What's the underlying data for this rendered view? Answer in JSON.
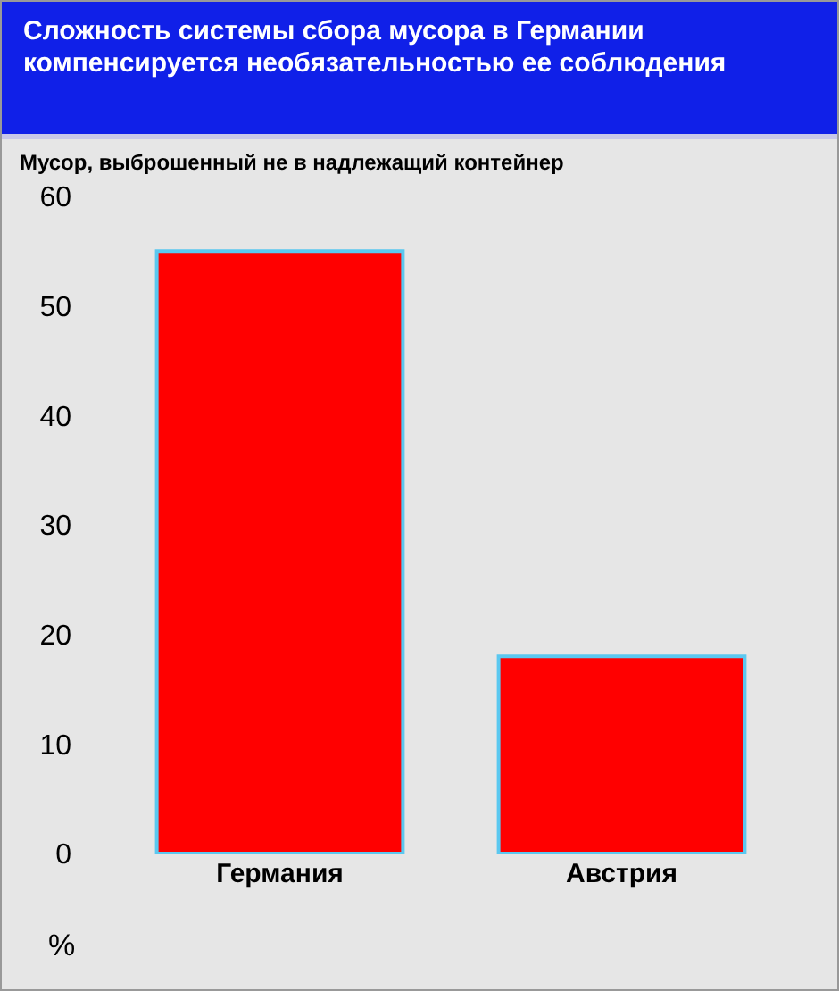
{
  "chart_data": {
    "type": "bar",
    "title": "Сложность системы сбора мусора в Германии компенсируется необязательностью ее соблюдения",
    "subtitle": "Мусор, выброшенный не в надлежащий контейнер",
    "ylabel": "%",
    "categories": [
      "Германия",
      "Австрия"
    ],
    "values": [
      55,
      18
    ],
    "color": "#ff0000",
    "ylim": [
      0,
      60
    ],
    "yticks": [
      0,
      10,
      20,
      30,
      40,
      50,
      60
    ],
    "grid": false
  }
}
